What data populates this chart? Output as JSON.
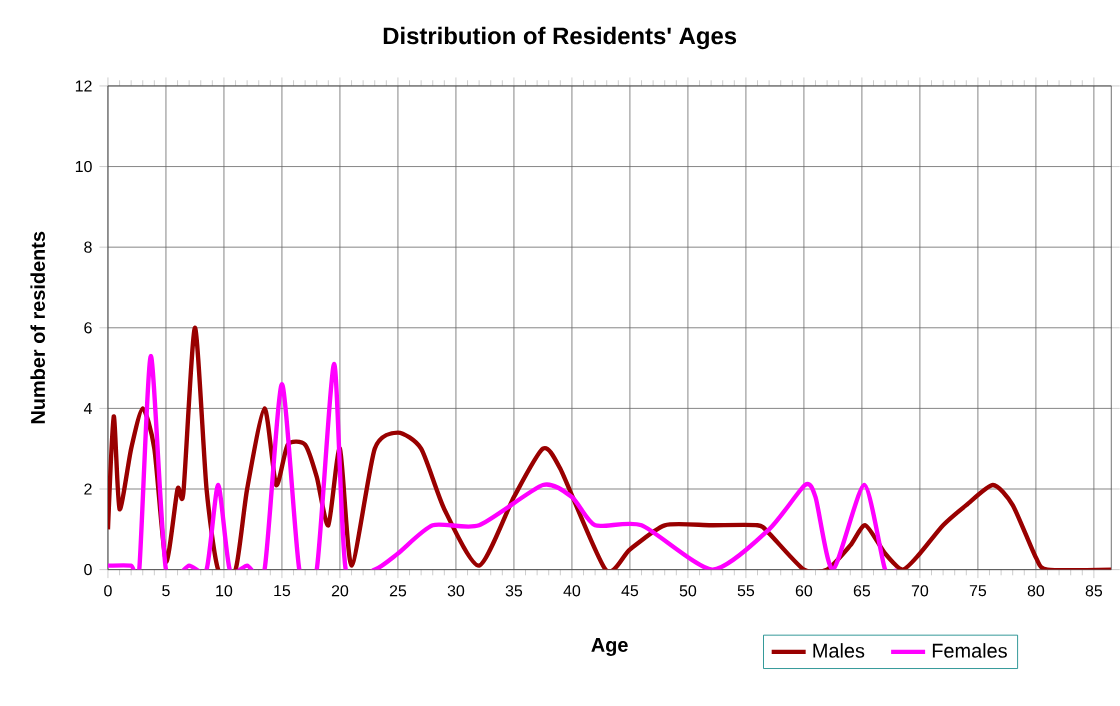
{
  "chart_data": {
    "type": "line",
    "title": "Distribution of Residents' Ages",
    "xlabel": "Age",
    "ylabel": "Number of residents",
    "xlim": [
      0,
      86.5
    ],
    "xticks": [
      0,
      5,
      10,
      15,
      20,
      25,
      30,
      35,
      40,
      45,
      50,
      55,
      60,
      65,
      70,
      75,
      80,
      85
    ],
    "ylim": [
      0,
      12
    ],
    "yticks": [
      0,
      2,
      4,
      6,
      8,
      10,
      12
    ],
    "grid": true,
    "legend": "bottom",
    "marker": "none",
    "line_style": "solid",
    "series": [
      {
        "name": "Males",
        "color": "#990000",
        "x": [
          0,
          0.5,
          1,
          2,
          3,
          4,
          5,
          6,
          6.5,
          7.5,
          8.5,
          9.5,
          11,
          12,
          13.5,
          14.5,
          15.5,
          17,
          18,
          19,
          20,
          21,
          23,
          25,
          27,
          29,
          32,
          35,
          37.5,
          39,
          42.9,
          45,
          48,
          52,
          56,
          57,
          60,
          62,
          64,
          65.3,
          67,
          68.5,
          70,
          72,
          74,
          76.3,
          78,
          80,
          81,
          86.5
        ],
        "values": [
          1,
          3.8,
          1.5,
          3,
          4,
          3,
          0.2,
          2,
          1.9,
          6,
          2,
          0,
          0,
          2,
          4,
          2.1,
          3.1,
          3.1,
          2.3,
          1.1,
          3,
          0.1,
          3,
          3.4,
          3,
          1.5,
          0.1,
          1.8,
          3,
          2.5,
          0,
          0.5,
          1.1,
          1.1,
          1.1,
          0.9,
          0,
          0,
          0.6,
          1.1,
          0.4,
          0,
          0.4,
          1.1,
          1.6,
          2.1,
          1.6,
          0.3,
          0,
          0
        ]
      },
      {
        "name": "Females",
        "color": "#ff00ff",
        "x": [
          0,
          2,
          2.7,
          3.7,
          5,
          7,
          8.5,
          9.5,
          10.5,
          12,
          13.5,
          15,
          16.5,
          18,
          19.5,
          20.5,
          23,
          25,
          28,
          32,
          37.5,
          40,
          42,
          46,
          52.1,
          57,
          60.1,
          61,
          62.5,
          65.2,
          67,
          68
        ],
        "values": [
          0.1,
          0.1,
          0,
          5.3,
          0,
          0.1,
          0,
          2.1,
          0,
          0.1,
          0,
          4.6,
          0,
          0,
          5.1,
          0,
          0,
          0.4,
          1.1,
          1.1,
          2.1,
          1.8,
          1.1,
          1.1,
          0,
          1,
          2.1,
          1.8,
          0,
          2.1,
          0,
          0
        ]
      }
    ]
  }
}
